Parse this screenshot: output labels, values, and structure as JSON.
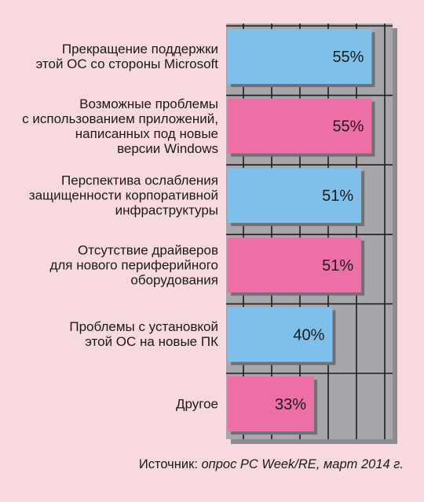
{
  "chart_data": {
    "type": "bar",
    "orientation": "horizontal",
    "categories": [
      "Прекращение поддержки\nэтой ОС со стороны Microsoft",
      "Возможные проблемы\nс использованием приложений,\nнаписанных под новые\nверсии Windows",
      "Перспектива ослабления\nзащищенности корпоративной\nинфраструктуры",
      "Отсутствие драйверов\nдля нового периферийного\nоборудования",
      "Проблемы с установкой\nэтой ОС на новые ПК",
      "Другое"
    ],
    "values": [
      55,
      55,
      51,
      51,
      40,
      33
    ],
    "value_labels": [
      "55%",
      "55%",
      "51%",
      "51%",
      "40%",
      "33%"
    ],
    "xlim": [
      0,
      65
    ],
    "grid": true,
    "colors": {
      "bar_blue": "#7ec0ea",
      "bar_pink": "#ee6fa6",
      "plot_background": "#a6a6ab",
      "page_background": "#f8d9df",
      "grid": "#1e1e1e"
    }
  },
  "source": {
    "prefix": "Источник: ",
    "italic": "опрос PC Week/RE, март 2014 г."
  }
}
